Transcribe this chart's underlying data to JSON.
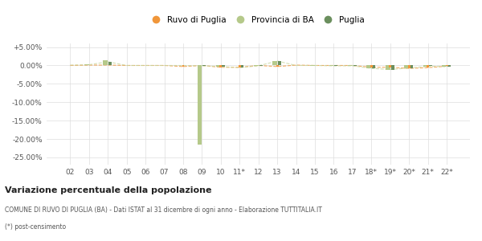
{
  "categories": [
    "02",
    "03",
    "04",
    "05",
    "06",
    "07",
    "08",
    "09",
    "10",
    "11*",
    "12",
    "13",
    "14",
    "15",
    "16",
    "17",
    "18*",
    "19*",
    "20*",
    "21*",
    "22*"
  ],
  "ruvo": [
    0.0,
    0.1,
    0.1,
    0.0,
    0.0,
    0.0,
    -0.3,
    0.0,
    -0.5,
    -0.5,
    0.0,
    -0.3,
    0.1,
    0.0,
    0.0,
    0.0,
    -0.5,
    -0.5,
    -0.8,
    -0.6,
    -0.2
  ],
  "provincia": [
    0.2,
    0.4,
    1.4,
    0.0,
    0.0,
    0.1,
    0.0,
    -21.5,
    -0.3,
    0.1,
    -0.2,
    1.1,
    0.1,
    -0.1,
    -0.1,
    -0.1,
    -0.7,
    -1.2,
    -0.8,
    -0.3,
    -0.4
  ],
  "puglia": [
    0.1,
    0.2,
    1.0,
    0.0,
    0.0,
    0.0,
    0.0,
    -0.1,
    -0.3,
    -0.6,
    -0.1,
    1.2,
    0.0,
    0.0,
    -0.1,
    -0.1,
    -0.8,
    -1.1,
    -0.7,
    -0.2,
    -0.3
  ],
  "ruvo_color": "#f0963a",
  "provincia_color": "#b5c98a",
  "puglia_color": "#6b8f5e",
  "line_color_ruvo": "#f0963a",
  "line_color_puglia": "#c8d8a0",
  "ylim": [
    -27,
    6
  ],
  "yticks": [
    5,
    0,
    -5,
    -10,
    -15,
    -20,
    -25
  ],
  "ytick_labels": [
    "+5.00%",
    "0.00%",
    "-5.00%",
    "-10.00%",
    "-15.00%",
    "-20.00%",
    "-25.00%"
  ],
  "title": "Variazione percentuale della popolazione",
  "subtitle": "COMUNE DI RUVO DI PUGLIA (BA) - Dati ISTAT al 31 dicembre di ogni anno - Elaborazione TUTTITALIA.IT",
  "footnote": "(*) post-censimento",
  "legend_labels": [
    "Ruvo di Puglia",
    "Provincia di BA",
    "Puglia"
  ],
  "bar_width": 0.25
}
